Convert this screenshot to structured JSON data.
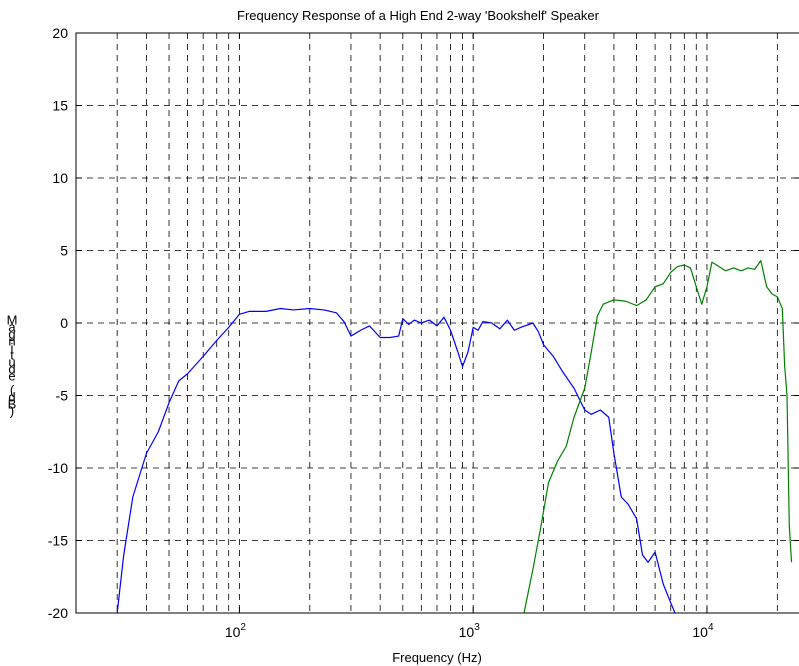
{
  "chart_data": {
    "type": "line",
    "title": "Frequency Response of a High End 2-way 'Bookshelf' Speaker",
    "xlabel": "Frequency (Hz)",
    "ylabel": "Magnitude (dB)",
    "xscale": "log",
    "xlim": [
      20,
      25000
    ],
    "ylim": [
      -20,
      20
    ],
    "xticks": [
      {
        "value": 100,
        "base": "10",
        "exp": "2"
      },
      {
        "value": 1000,
        "base": "10",
        "exp": "3"
      },
      {
        "value": 10000,
        "base": "10",
        "exp": "4"
      }
    ],
    "yticks": [
      -20,
      -15,
      -10,
      -5,
      0,
      5,
      10,
      15,
      20
    ],
    "grid": true,
    "grid_style": "dashed",
    "series": [
      {
        "color": "#0000ff",
        "points": [
          [
            30,
            -20
          ],
          [
            32,
            -16
          ],
          [
            35,
            -12
          ],
          [
            40,
            -9
          ],
          [
            45,
            -7.5
          ],
          [
            50,
            -5.5
          ],
          [
            55,
            -4
          ],
          [
            60,
            -3.5
          ],
          [
            70,
            -2.3
          ],
          [
            80,
            -1.2
          ],
          [
            90,
            -0.3
          ],
          [
            100,
            0.6
          ],
          [
            110,
            0.8
          ],
          [
            130,
            0.8
          ],
          [
            150,
            1.0
          ],
          [
            170,
            0.9
          ],
          [
            200,
            1.0
          ],
          [
            230,
            0.9
          ],
          [
            260,
            0.7
          ],
          [
            280,
            0.1
          ],
          [
            300,
            -0.9
          ],
          [
            330,
            -0.5
          ],
          [
            360,
            -0.2
          ],
          [
            400,
            -1.0
          ],
          [
            440,
            -1.0
          ],
          [
            480,
            -0.9
          ],
          [
            500,
            0.3
          ],
          [
            530,
            -0.1
          ],
          [
            560,
            0.2
          ],
          [
            600,
            0.0
          ],
          [
            650,
            0.2
          ],
          [
            700,
            -0.2
          ],
          [
            750,
            0.4
          ],
          [
            800,
            -0.5
          ],
          [
            860,
            -2.0
          ],
          [
            900,
            -3.0
          ],
          [
            950,
            -2.0
          ],
          [
            1000,
            -0.3
          ],
          [
            1050,
            -0.5
          ],
          [
            1100,
            0.1
          ],
          [
            1200,
            0.0
          ],
          [
            1300,
            -0.4
          ],
          [
            1400,
            0.2
          ],
          [
            1500,
            -0.5
          ],
          [
            1600,
            -0.3
          ],
          [
            1800,
            0.0
          ],
          [
            1900,
            -0.6
          ],
          [
            2000,
            -1.5
          ],
          [
            2200,
            -2.3
          ],
          [
            2400,
            -3.3
          ],
          [
            2700,
            -4.5
          ],
          [
            3000,
            -6.0
          ],
          [
            3200,
            -6.3
          ],
          [
            3500,
            -6.0
          ],
          [
            3800,
            -6.5
          ],
          [
            4000,
            -9.0
          ],
          [
            4300,
            -12.0
          ],
          [
            4600,
            -12.5
          ],
          [
            5000,
            -13.5
          ],
          [
            5300,
            -16.0
          ],
          [
            5600,
            -16.5
          ],
          [
            6000,
            -15.8
          ],
          [
            6500,
            -18.0
          ],
          [
            7000,
            -19.3
          ],
          [
            7300,
            -20
          ]
        ]
      },
      {
        "color": "#008000",
        "points": [
          [
            1650,
            -20
          ],
          [
            1800,
            -17
          ],
          [
            1950,
            -14
          ],
          [
            2100,
            -11
          ],
          [
            2300,
            -9.5
          ],
          [
            2500,
            -8.5
          ],
          [
            2700,
            -6.5
          ],
          [
            3000,
            -4.5
          ],
          [
            3200,
            -2.0
          ],
          [
            3400,
            0.5
          ],
          [
            3600,
            1.3
          ],
          [
            4000,
            1.6
          ],
          [
            4500,
            1.5
          ],
          [
            5000,
            1.2
          ],
          [
            5500,
            1.6
          ],
          [
            6000,
            2.5
          ],
          [
            6500,
            2.7
          ],
          [
            7000,
            3.5
          ],
          [
            7500,
            3.9
          ],
          [
            8000,
            4.0
          ],
          [
            8500,
            3.8
          ],
          [
            9000,
            2.5
          ],
          [
            9500,
            1.3
          ],
          [
            10000,
            2.5
          ],
          [
            10500,
            4.2
          ],
          [
            11000,
            4.0
          ],
          [
            12000,
            3.6
          ],
          [
            13000,
            3.8
          ],
          [
            14000,
            3.6
          ],
          [
            15000,
            3.8
          ],
          [
            16000,
            3.7
          ],
          [
            17000,
            4.3
          ],
          [
            18000,
            2.5
          ],
          [
            19000,
            2.0
          ],
          [
            20000,
            1.8
          ],
          [
            21000,
            1.0
          ],
          [
            21500,
            -3.0
          ],
          [
            22000,
            -5.0
          ],
          [
            22500,
            -14.0
          ],
          [
            23000,
            -16.5
          ]
        ]
      }
    ]
  }
}
